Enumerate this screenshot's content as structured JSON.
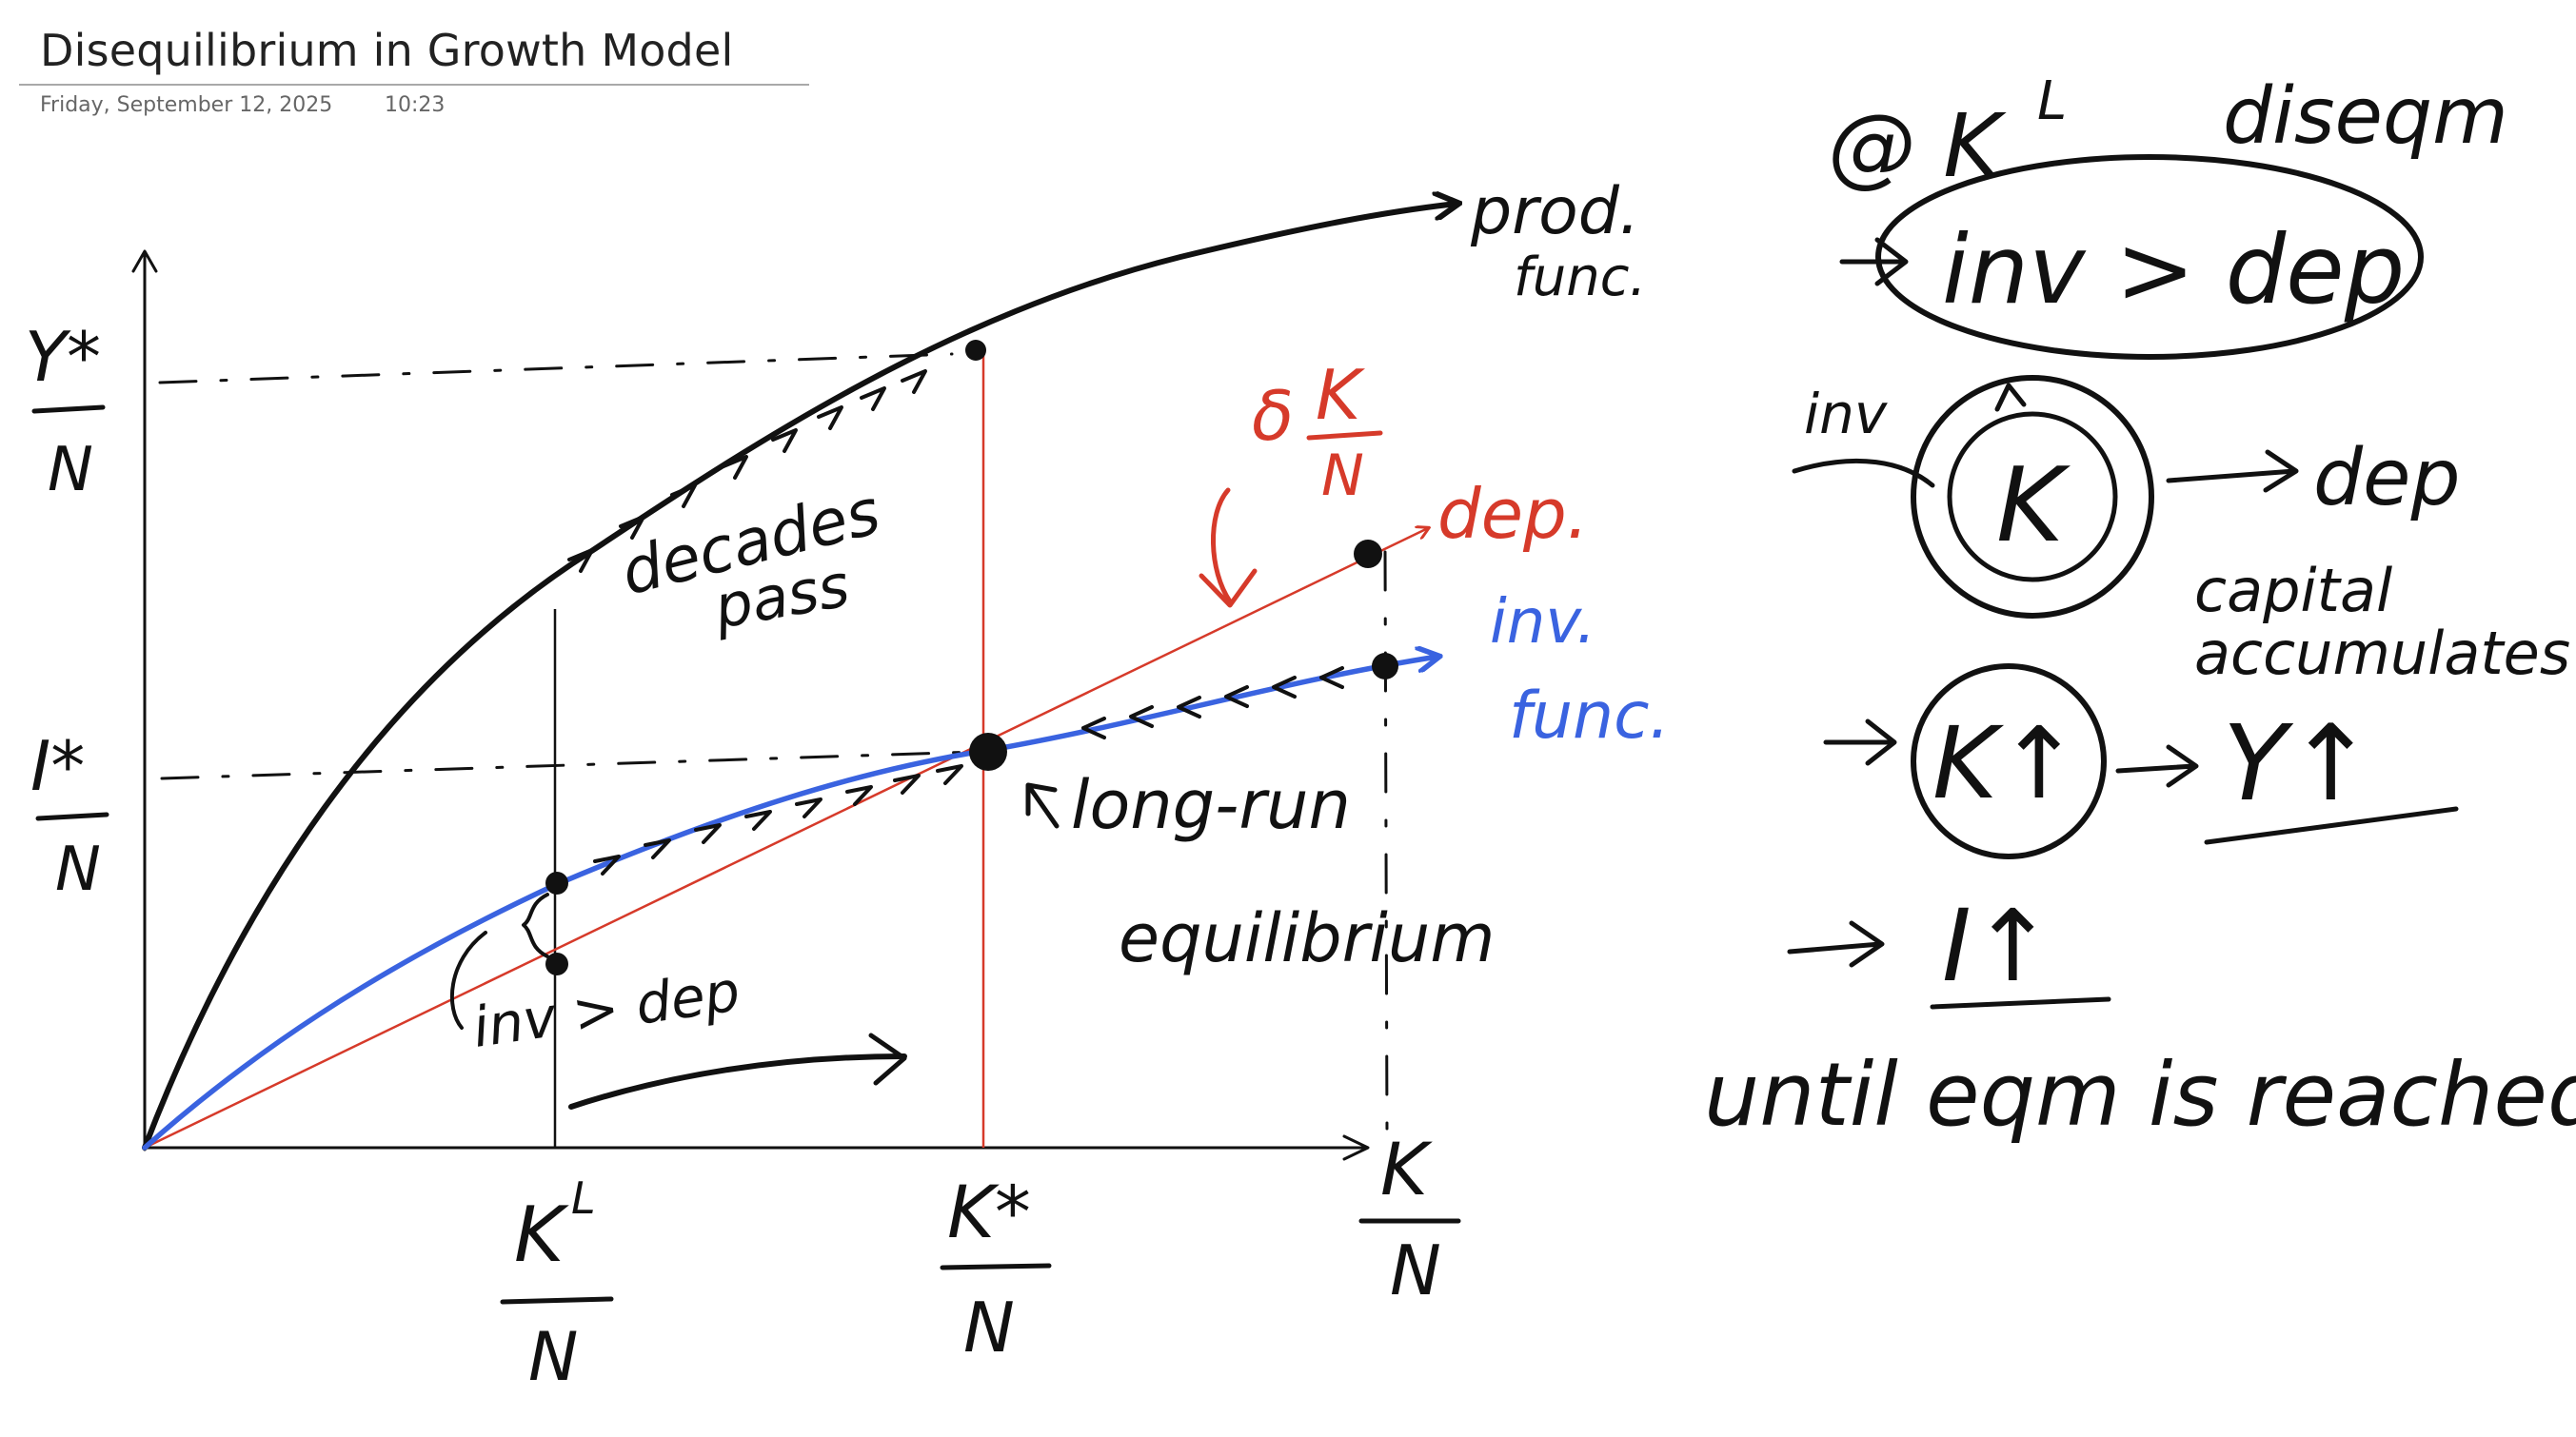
{
  "page": {
    "title": "Disequilibrium in Growth Model",
    "date": "Friday, September 12, 2025",
    "time": "10:23"
  },
  "colors": {
    "ink": "#111111",
    "red": "#d63a2a",
    "blue": "#3a63e0",
    "rule": "#a9a9a9"
  },
  "graph": {
    "y_labels": {
      "output": "Y*",
      "investment": "I*",
      "denominator": "N"
    },
    "x_labels": {
      "kl": "K",
      "kl_sup": "L",
      "kstar": "K*",
      "axis": "K",
      "denominator": "N"
    },
    "curve_labels": {
      "prod_1": "prod.",
      "prod_2": "func.",
      "dep": "dep.",
      "delta": "δ",
      "delta_k": "K",
      "delta_n": "N",
      "inv_1": "inv.",
      "inv_2": "func."
    },
    "annotations": {
      "decades_1": "decades",
      "decades_2": "pass",
      "inv_dep": "inv > dep",
      "lr_1": "long-run",
      "lr_2": "equilibrium"
    }
  },
  "notes": {
    "at": "@ K",
    "at_sup": "L",
    "diseqm": "diseqm",
    "inv_gt_dep": "inv > dep",
    "inv": "inv",
    "k": "K",
    "dep": "dep",
    "capital_1": "capital",
    "capital_2": "accumulates",
    "k_up": "K↑",
    "y_up": "Y↑",
    "i_up": "I↑",
    "until": "until eqm is reached"
  }
}
